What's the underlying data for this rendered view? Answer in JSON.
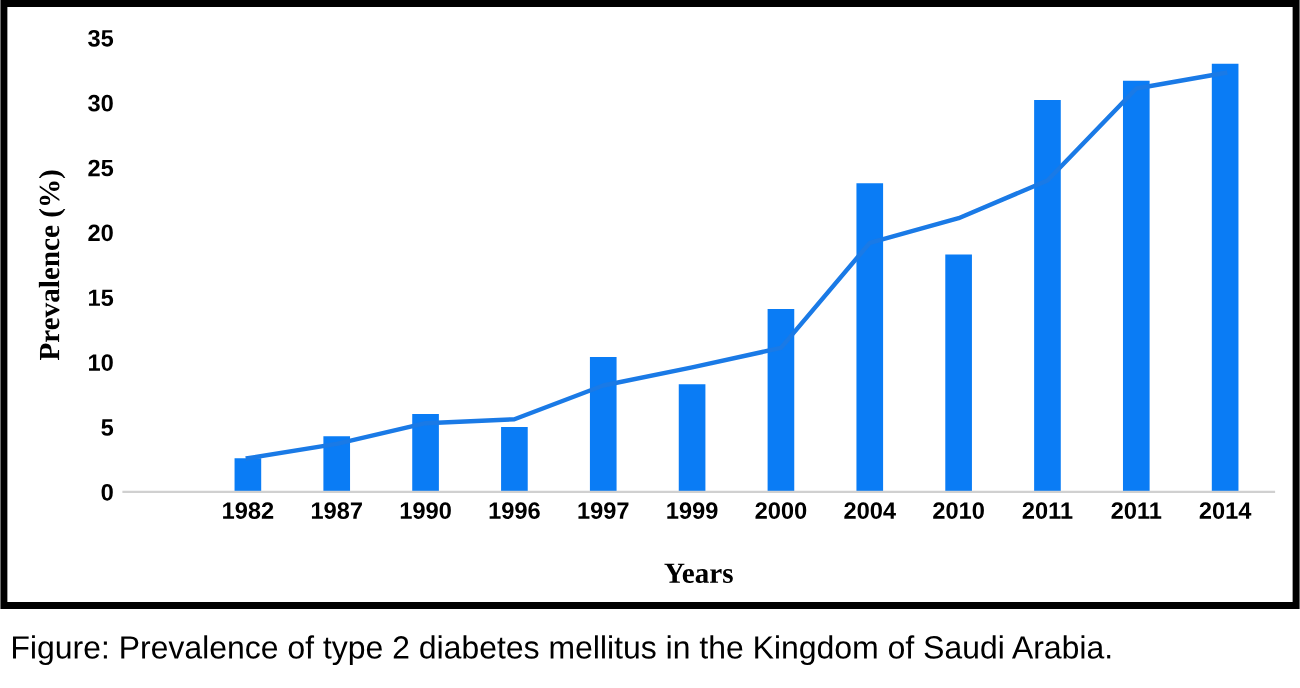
{
  "chart_data": {
    "type": "bar",
    "xlabel": "Years",
    "ylabel": "Prevalence (%)",
    "categories": [
      "1982",
      "1987",
      "1990",
      "1996",
      "1997",
      "1999",
      "2000",
      "2004",
      "2010",
      "2011",
      "2011",
      "2014"
    ],
    "series": [
      {
        "color": "#0a7cf5",
        "values": [
          2.6,
          4.3,
          6.0,
          5.0,
          10.4,
          8.3,
          14.1,
          23.8,
          18.3,
          30.2,
          31.7,
          33.0
        ]
      },
      {
        "type": "line",
        "color": "#1a7ae6",
        "values": [
          2.6,
          3.7,
          5.3,
          5.6,
          8.2,
          9.6,
          11.1,
          19.2,
          21.1,
          24.0,
          31.1,
          32.3
        ]
      }
    ],
    "ylim": [
      0,
      35
    ],
    "yticks": [
      0,
      5,
      10,
      15,
      20,
      25,
      30,
      35
    ],
    "grid": false,
    "legend": false,
    "annotations": [
      "Figure: Prevalence of type 2 diabetes mellitus in the Kingdom of Saudi Arabia."
    ]
  }
}
